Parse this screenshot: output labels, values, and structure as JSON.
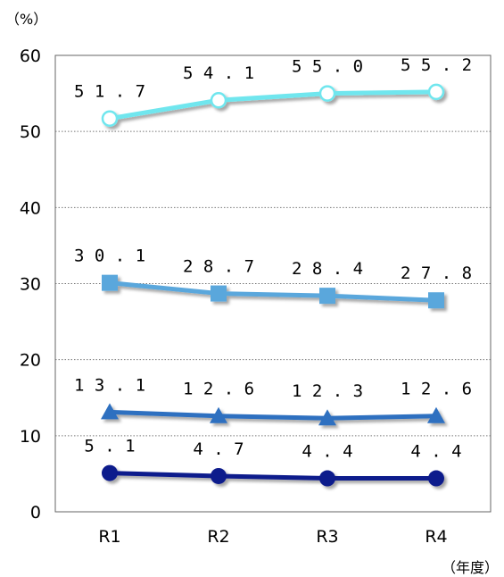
{
  "chart_data": {
    "type": "line",
    "y_unit": "（%）",
    "x_unit": "（年度）",
    "categories": [
      "R1",
      "R2",
      "R3",
      "R4"
    ],
    "ylim": [
      0,
      60
    ],
    "yticks": [
      0,
      10,
      20,
      30,
      40,
      50,
      60
    ],
    "grid": true,
    "legend": "none",
    "series": [
      {
        "values": [
          51.7,
          54.1,
          55.0,
          55.2
        ],
        "labels": [
          "51.7",
          "54.1",
          "55.0",
          "55.2"
        ],
        "marker": "circle-open",
        "color": "#6fe6ee",
        "marker_fill": "#ffffff"
      },
      {
        "values": [
          30.1,
          28.7,
          28.4,
          27.8
        ],
        "labels": [
          "30.1",
          "28.7",
          "28.4",
          "27.8"
        ],
        "marker": "square",
        "color": "#5aa7dc",
        "marker_fill": "#5aa7dc"
      },
      {
        "values": [
          13.1,
          12.6,
          12.3,
          12.6
        ],
        "labels": [
          "13.1",
          "12.6",
          "12.3",
          "12.6"
        ],
        "marker": "triangle",
        "color": "#2e6fc0",
        "marker_fill": "#2e6fc0"
      },
      {
        "values": [
          5.1,
          4.7,
          4.4,
          4.4
        ],
        "labels": [
          "5.1",
          "4.7",
          "4.4",
          "4.4"
        ],
        "marker": "circle",
        "color": "#101a8c",
        "marker_fill": "#101a8c"
      }
    ]
  }
}
